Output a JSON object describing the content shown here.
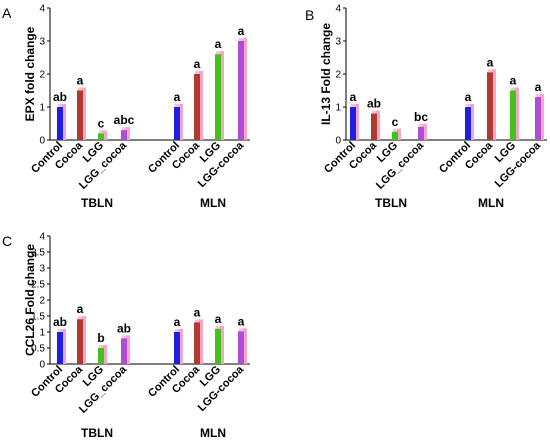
{
  "colors": {
    "control": "#1f1fe0",
    "cocoa": "#b03a2e",
    "lgg": "#44c21c",
    "lgg_cocoa": "#b04ad8",
    "shadow": "#f4a6c8",
    "axis": "#000000"
  },
  "chart_data": [
    {
      "type": "bar",
      "panel": "A",
      "ylabel": "EPX fold change",
      "ylim": [
        0,
        4
      ],
      "yticks": [
        0,
        1,
        2,
        3,
        4
      ],
      "grid": false,
      "groups": [
        {
          "name": "TBLN",
          "categories": [
            "Control",
            "Cocoa",
            "LGG",
            "LGG_cocoa"
          ],
          "values": [
            1.0,
            1.5,
            0.2,
            0.3
          ],
          "letters": [
            "ab",
            "a",
            "c",
            "abc"
          ]
        },
        {
          "name": "MLN",
          "categories": [
            "Control",
            "Cocoa",
            "LGG",
            "LGG-cocoa"
          ],
          "values": [
            1.0,
            2.0,
            2.6,
            3.0
          ],
          "letters": [
            "a",
            "a",
            "a",
            "a"
          ]
        }
      ]
    },
    {
      "type": "bar",
      "panel": "B",
      "ylabel": "IL-13 Fold change",
      "ylim": [
        0,
        4
      ],
      "yticks": [
        0,
        1,
        2,
        3,
        4
      ],
      "grid": false,
      "groups": [
        {
          "name": "TBLN",
          "categories": [
            "Control",
            "Cocoa",
            "LGG",
            "LGG_cocoa"
          ],
          "values": [
            1.0,
            0.8,
            0.25,
            0.4
          ],
          "letters": [
            "a",
            "ab",
            "c",
            "bc"
          ]
        },
        {
          "name": "MLN",
          "categories": [
            "Control",
            "Cocoa",
            "LGG",
            "LGG-cocoa"
          ],
          "values": [
            1.0,
            2.05,
            1.5,
            1.3
          ],
          "letters": [
            "a",
            "a",
            "a",
            "a"
          ]
        }
      ]
    },
    {
      "type": "bar",
      "panel": "C",
      "ylabel": "CCL26 Fold change",
      "ylim": [
        0,
        4
      ],
      "yticks": [
        0,
        0.5,
        1,
        1.5,
        2,
        2.5,
        3,
        3.5,
        4
      ],
      "grid": false,
      "groups": [
        {
          "name": "TBLN",
          "categories": [
            "Control",
            "Cocoa",
            "LGG",
            "LGG_cocoa"
          ],
          "values": [
            1.0,
            1.4,
            0.5,
            0.8
          ],
          "letters": [
            "ab",
            "a",
            "b",
            "ab"
          ]
        },
        {
          "name": "MLN",
          "categories": [
            "Control",
            "Cocoa",
            "LGG",
            "LGG-cocoa"
          ],
          "values": [
            1.0,
            1.3,
            1.1,
            1.02
          ],
          "letters": [
            "a",
            "a",
            "a",
            "a"
          ]
        }
      ]
    }
  ]
}
